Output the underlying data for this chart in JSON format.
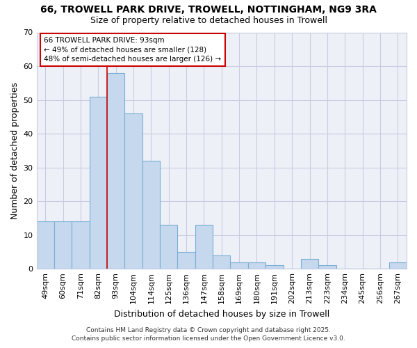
{
  "title": "66, TROWELL PARK DRIVE, TROWELL, NOTTINGHAM, NG9 3RA",
  "subtitle": "Size of property relative to detached houses in Trowell",
  "xlabel": "Distribution of detached houses by size in Trowell",
  "ylabel": "Number of detached properties",
  "categories": [
    "49sqm",
    "60sqm",
    "71sqm",
    "82sqm",
    "93sqm",
    "104sqm",
    "114sqm",
    "125sqm",
    "136sqm",
    "147sqm",
    "158sqm",
    "169sqm",
    "180sqm",
    "191sqm",
    "202sqm",
    "213sqm",
    "223sqm",
    "234sqm",
    "245sqm",
    "256sqm",
    "267sqm"
  ],
  "values": [
    14,
    14,
    14,
    51,
    58,
    46,
    32,
    13,
    5,
    13,
    4,
    2,
    2,
    1,
    0,
    3,
    1,
    0,
    0,
    0,
    2
  ],
  "bar_color": "#c5d8ee",
  "bar_edge_color": "#7aafd4",
  "highlight_bar_index": 4,
  "highlight_edge_color": "#cc0000",
  "ylim": [
    0,
    70
  ],
  "yticks": [
    0,
    10,
    20,
    30,
    40,
    50,
    60,
    70
  ],
  "annotation_line1": "66 TROWELL PARK DRIVE: 93sqm",
  "annotation_line2": "← 49% of detached houses are smaller (128)",
  "annotation_line3": "48% of semi-detached houses are larger (126) →",
  "annotation_box_facecolor": "#ffffff",
  "annotation_box_edgecolor": "#cc0000",
  "footer_line1": "Contains HM Land Registry data © Crown copyright and database right 2025.",
  "footer_line2": "Contains public sector information licensed under the Open Government Licence v3.0.",
  "background_color": "#ffffff",
  "plot_bg_color": "#eef0f8",
  "grid_color": "#c8cce0"
}
